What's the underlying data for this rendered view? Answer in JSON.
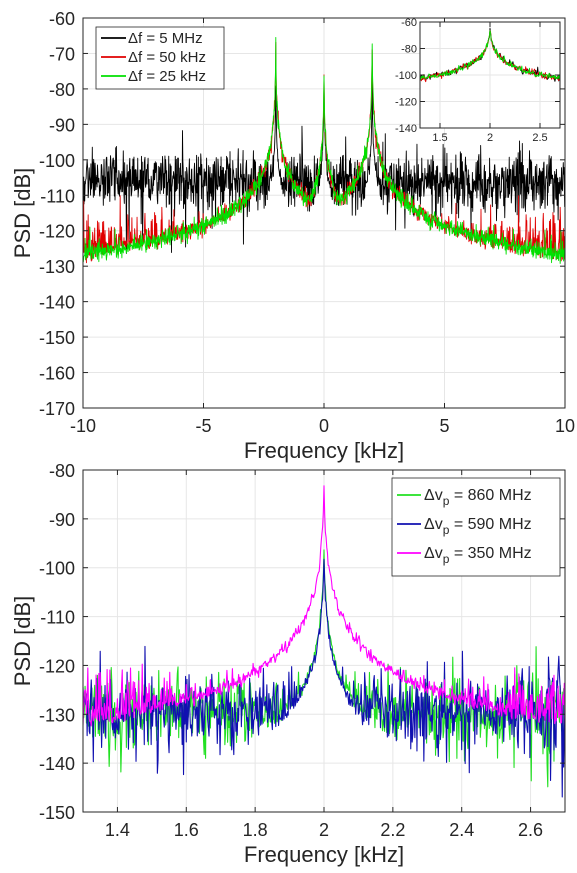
{
  "chart_data": [
    {
      "type": "line",
      "panel": "top",
      "xlabel": "Frequency [kHz]",
      "ylabel": "PSD [dB]",
      "xlim": [
        -10,
        10
      ],
      "ylim": [
        -170,
        -60
      ],
      "xticks": [
        "-10",
        "-5",
        "0",
        "5",
        "10"
      ],
      "yticks": [
        "-60",
        "-70",
        "-80",
        "-90",
        "-100",
        "-110",
        "-120",
        "-130",
        "-140",
        "-150",
        "-160",
        "-170"
      ],
      "grid": true,
      "legend_position": "top-left",
      "series": [
        {
          "name": "Δf = 5 MHz",
          "color": "#000000",
          "noise_floor_db": -106,
          "noise_spread_db": 9,
          "peaks": [
            {
              "x": -2,
              "y": -78
            },
            {
              "x": 0,
              "y": -80
            },
            {
              "x": 2,
              "y": -78
            },
            {
              "x": -0.9,
              "y": -95
            },
            {
              "x": 0.9,
              "y": -95
            }
          ]
        },
        {
          "name": "Δf = 50 kHz",
          "color": "#e00000",
          "noise_floor_db": -125,
          "noise_spread_db": 10,
          "peaks": [
            {
              "x": -2,
              "y": -67
            },
            {
              "x": 0,
              "y": -76
            },
            {
              "x": 2,
              "y": -67
            }
          ]
        },
        {
          "name": "Δf = 25 kHz",
          "color": "#00e000",
          "noise_floor_db": -131,
          "noise_spread_db": 11,
          "peaks": [
            {
              "x": -2,
              "y": -67
            },
            {
              "x": 0,
              "y": -76
            },
            {
              "x": 2,
              "y": -67
            }
          ]
        }
      ],
      "inset": {
        "xlim": [
          1.3,
          2.7
        ],
        "ylim": [
          -140,
          -60
        ],
        "xticks": [
          "1.5",
          "2",
          "2.5"
        ],
        "yticks": [
          "-60",
          "-80",
          "-100",
          "-120",
          "-140"
        ],
        "peak": {
          "x": 2,
          "y": -67
        }
      }
    },
    {
      "type": "line",
      "panel": "bottom",
      "xlabel": "Frequency [kHz]",
      "ylabel": "PSD [dB]",
      "xlim": [
        1.3,
        2.7
      ],
      "ylim": [
        -150,
        -80
      ],
      "xticks": [
        "1.4",
        "1.6",
        "1.8",
        "2",
        "2.2",
        "2.4",
        "2.6"
      ],
      "yticks": [
        "-80",
        "-90",
        "-100",
        "-110",
        "-120",
        "-130",
        "-140",
        "-150"
      ],
      "grid": true,
      "legend_position": "top-right",
      "series": [
        {
          "name": "Δv",
          "subscript": "p",
          "suffix": " = 860 MHz",
          "color": "#22e022",
          "noise_floor_db": -129,
          "peak": {
            "x": 2,
            "y": -97
          }
        },
        {
          "name": "Δv",
          "subscript": "p",
          "suffix": " = 590 MHz",
          "color": "#1010b0",
          "noise_floor_db": -129,
          "peak": {
            "x": 2,
            "y": -98
          }
        },
        {
          "name": "Δv",
          "subscript": "p",
          "suffix": " = 350 MHz",
          "color": "#ff00ff",
          "noise_floor_db": -129,
          "peak": {
            "x": 2,
            "y": -84
          }
        }
      ]
    }
  ]
}
